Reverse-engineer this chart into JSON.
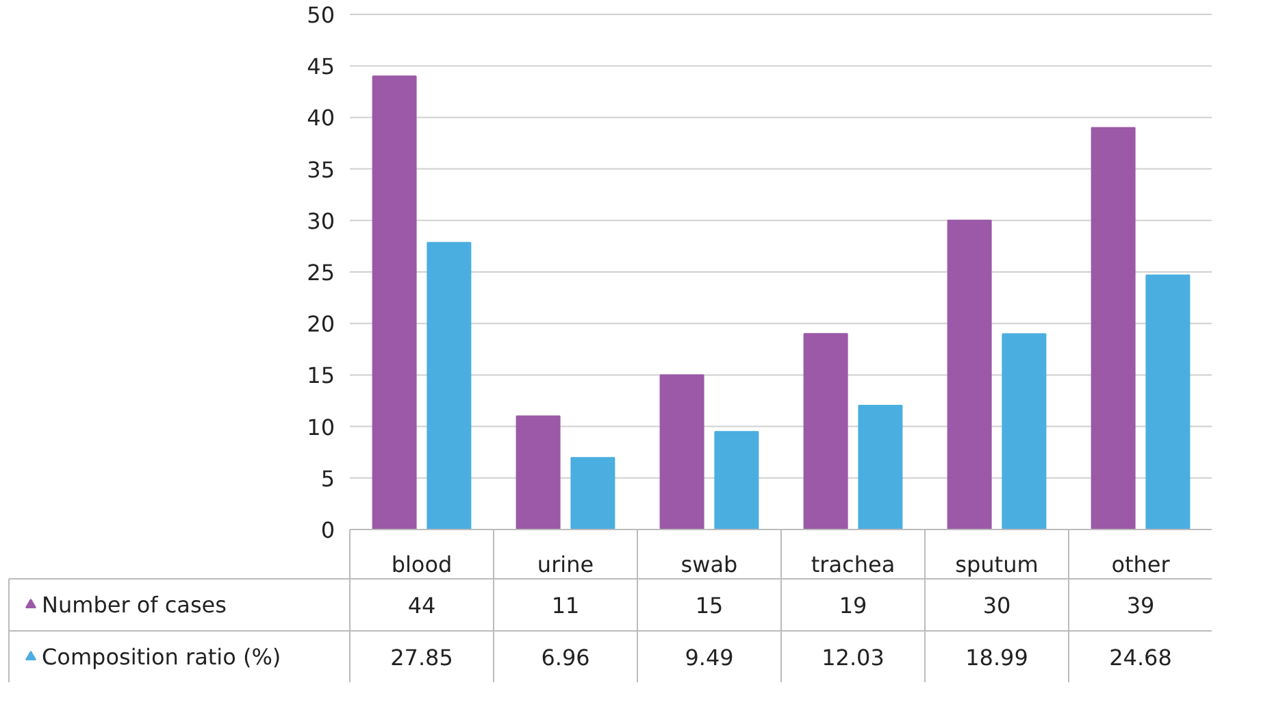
{
  "chart_data": {
    "type": "bar",
    "categories": [
      "blood",
      "urine",
      "swab",
      "trachea",
      "sputum",
      "other"
    ],
    "series": [
      {
        "name": "Number of cases",
        "color": "#9b59a8",
        "values": [
          44,
          11,
          15,
          19,
          30,
          39
        ]
      },
      {
        "name": "Composition ratio (%)",
        "color": "#4aaee0",
        "values": [
          27.85,
          6.96,
          9.49,
          12.03,
          18.99,
          24.68
        ]
      }
    ],
    "ylim": [
      0,
      50
    ],
    "yticks": [
      0,
      5,
      10,
      15,
      20,
      25,
      30,
      35,
      40,
      45,
      50
    ],
    "grid": "y",
    "legend": "bottom left",
    "data_labels": true
  }
}
